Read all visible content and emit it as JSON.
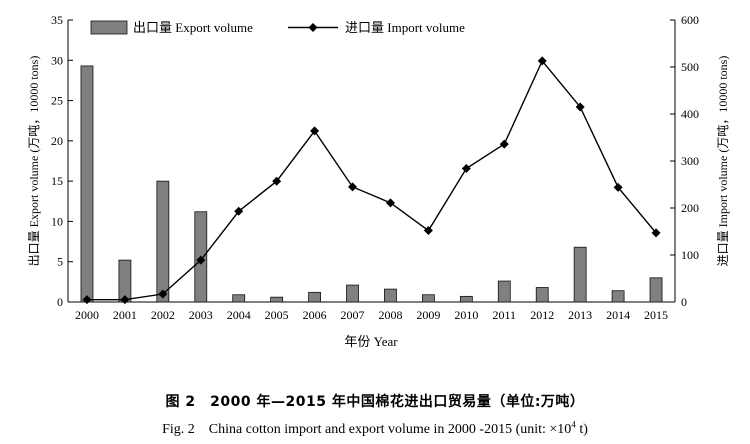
{
  "chart_data": {
    "type": "bar+line",
    "categories": [
      "2000",
      "2001",
      "2002",
      "2003",
      "2004",
      "2005",
      "2006",
      "2007",
      "2008",
      "2009",
      "2010",
      "2011",
      "2012",
      "2013",
      "2014",
      "2015"
    ],
    "series": [
      {
        "name": "出口量 Export volume",
        "type": "bar",
        "axis": "left",
        "values": [
          29.3,
          5.2,
          15.0,
          11.2,
          0.9,
          0.6,
          1.2,
          2.1,
          1.6,
          0.9,
          0.7,
          2.6,
          1.8,
          6.8,
          1.4,
          3.0
        ]
      },
      {
        "name": "进口量 Import volume",
        "type": "line",
        "axis": "right",
        "values": [
          5,
          5,
          17,
          89,
          193,
          257,
          364,
          245,
          211,
          152,
          284,
          336,
          513,
          415,
          244,
          147
        ]
      }
    ],
    "xlabel": "年份 Year",
    "ylabel_left": "出口量 Export volume (万吨，10000 tons)",
    "ylabel_right": "进口量 Import volume (万吨，10000 tons)",
    "ylim_left": [
      0,
      35
    ],
    "yticks_left": [
      0,
      5,
      10,
      15,
      20,
      25,
      30,
      35
    ],
    "ylim_right": [
      0,
      600
    ],
    "yticks_right": [
      0,
      100,
      200,
      300,
      400,
      500,
      600
    ],
    "legend": [
      "出口量 Export volume",
      "进口量 Import volume"
    ],
    "legend_position": "top-left",
    "grid": false,
    "colors": {
      "bar": "#808080",
      "bar_edge": "#111111",
      "line": "#000000"
    }
  },
  "caption": {
    "cn": "图 2　2000 年—2015 年中国棉花进出口贸易量（单位:万吨）",
    "en_prefix": "Fig. 2　China cotton import and export volume in 2000 -2015 (unit: ×10",
    "en_exp": "4",
    "en_suffix": " t)"
  }
}
